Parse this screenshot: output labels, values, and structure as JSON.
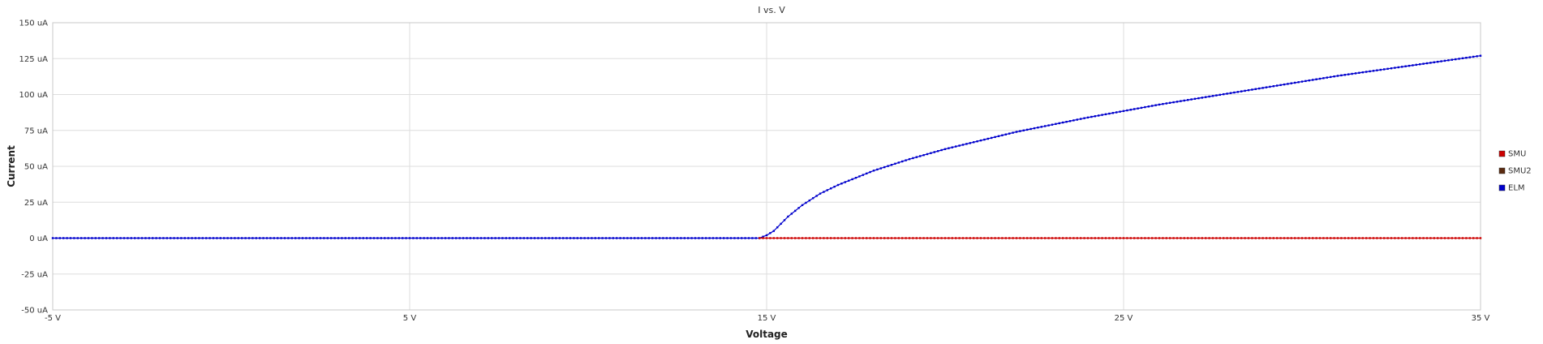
{
  "chart_data": {
    "type": "line",
    "title": "I vs. V",
    "xlabel": "Voltage",
    "ylabel": "Current",
    "xlim": [
      -5,
      35
    ],
    "ylim": [
      -50,
      150
    ],
    "x_ticks": [
      -5,
      5,
      15,
      25,
      35
    ],
    "x_tick_labels": [
      "-5 V",
      "5 V",
      "15 V",
      "25 V",
      "35 V"
    ],
    "y_ticks": [
      -50,
      -25,
      0,
      25,
      50,
      75,
      100,
      125,
      150
    ],
    "y_tick_labels": [
      "-50 uA",
      "-25 uA",
      "0 uA",
      "25 uA",
      "50 uA",
      "75 uA",
      "100 uA",
      "125 uA",
      "150 uA"
    ],
    "grid": true,
    "legend_position": "right",
    "units": {
      "x": "V",
      "y": "uA"
    },
    "series": [
      {
        "name": "SMU",
        "color": "#cc0000",
        "marker": "square",
        "x_start": 14.8,
        "x_end": 35,
        "x_step": 0.1,
        "y_constant": 0
      },
      {
        "name": "SMU2",
        "color": "#5a2a10",
        "marker": "square",
        "visible_points": false
      },
      {
        "name": "ELM",
        "color": "#0000cc",
        "marker": "square",
        "x_step": 0.1,
        "points": [
          [
            -5,
            0
          ],
          [
            14.8,
            0
          ],
          [
            15.0,
            2
          ],
          [
            15.2,
            5
          ],
          [
            15.4,
            10
          ],
          [
            15.6,
            15
          ],
          [
            15.8,
            19
          ],
          [
            16.0,
            23
          ],
          [
            16.5,
            31
          ],
          [
            17.0,
            37
          ],
          [
            17.5,
            42
          ],
          [
            18,
            47
          ],
          [
            19,
            55
          ],
          [
            20,
            62
          ],
          [
            21,
            68
          ],
          [
            22,
            74
          ],
          [
            23,
            79
          ],
          [
            24,
            84
          ],
          [
            25,
            88.5
          ],
          [
            26,
            93
          ],
          [
            27,
            97
          ],
          [
            28,
            101
          ],
          [
            29,
            105
          ],
          [
            30,
            109
          ],
          [
            31,
            113
          ],
          [
            32,
            116.5
          ],
          [
            33,
            120
          ],
          [
            34,
            123.5
          ],
          [
            35,
            127
          ]
        ]
      }
    ]
  }
}
